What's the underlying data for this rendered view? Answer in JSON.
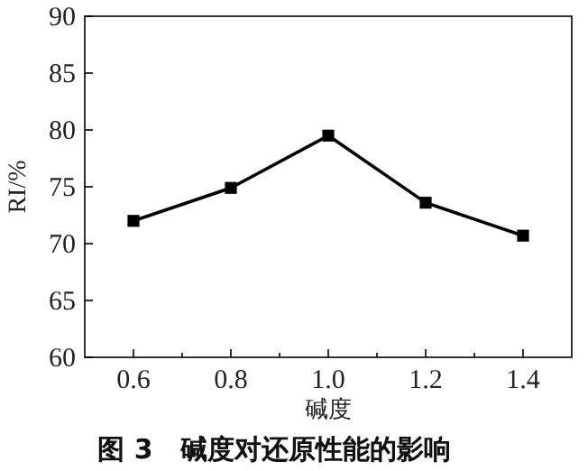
{
  "chart_data": {
    "type": "line",
    "xlabel": "碱度",
    "ylabel": "RI/%",
    "annotations": [
      "图 3　碱度对还原性能的影响"
    ],
    "x": [
      0.6,
      0.8,
      1.0,
      1.2,
      1.4
    ],
    "series": [
      {
        "color": "#000000",
        "values": [
          72.0,
          74.9,
          79.5,
          73.6,
          70.7
        ]
      }
    ],
    "marker": "square",
    "line_style": "solid",
    "xlim": [
      0.5,
      1.5
    ],
    "xticks": [
      {
        "value": 0.6,
        "label": "0.6"
      },
      {
        "value": 0.7,
        "label": null
      },
      {
        "value": 0.8,
        "label": "0.8"
      },
      {
        "value": 0.9,
        "label": null
      },
      {
        "value": 1.0,
        "label": "1.0"
      },
      {
        "value": 1.1,
        "label": null
      },
      {
        "value": 1.2,
        "label": "1.2"
      },
      {
        "value": 1.3,
        "label": null
      },
      {
        "value": 1.4,
        "label": "1.4"
      }
    ],
    "ylim": [
      60,
      90
    ],
    "yticks": [
      60,
      65,
      70,
      75,
      80,
      85,
      90
    ],
    "grid": false
  }
}
